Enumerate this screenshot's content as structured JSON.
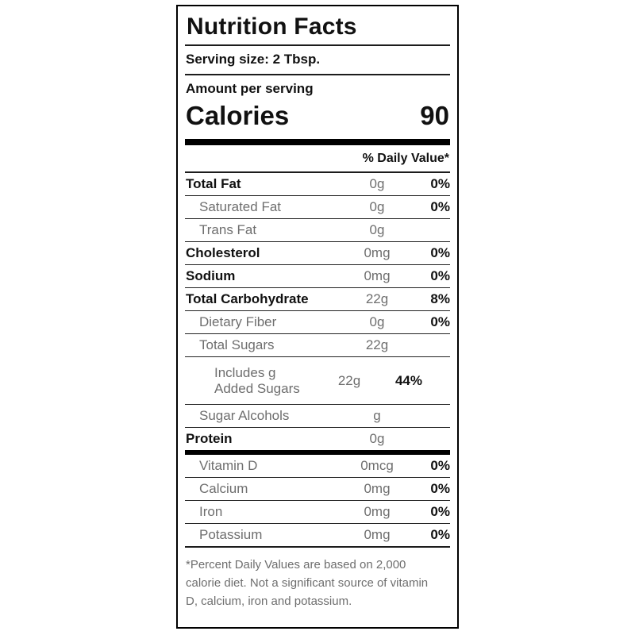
{
  "nutrition_label": {
    "title": "Nutrition Facts",
    "serving_size": "Serving size: 2 Tbsp.",
    "amount_per_serving": "Amount per serving",
    "calories": {
      "label": "Calories",
      "value": "90"
    },
    "daily_value_header": "% Daily Value*",
    "nutrients": [
      {
        "name": "Total Fat",
        "amount": "0g",
        "daily_value": "0%"
      },
      {
        "name": "Saturated Fat",
        "amount": "0g",
        "daily_value": "0%"
      },
      {
        "name": "Trans Fat",
        "amount": "0g",
        "daily_value": ""
      },
      {
        "name": "Cholesterol",
        "amount": "0mg",
        "daily_value": "0%"
      },
      {
        "name": "Sodium",
        "amount": "0mg",
        "daily_value": "0%"
      },
      {
        "name": "Total Carbohydrate",
        "amount": "22g",
        "daily_value": "8%"
      },
      {
        "name": "Dietary Fiber",
        "amount": "0g",
        "daily_value": "0%"
      },
      {
        "name": "Total Sugars",
        "amount": "22g",
        "daily_value": ""
      },
      {
        "name": "Includes g Added Sugars",
        "amount": "22g",
        "daily_value": "44%"
      },
      {
        "name": "Sugar Alcohols",
        "amount": "g",
        "daily_value": ""
      },
      {
        "name": "Protein",
        "amount": "0g",
        "daily_value": ""
      }
    ],
    "micronutrients": [
      {
        "name": "Vitamin D",
        "amount": "0mcg",
        "daily_value": "0%"
      },
      {
        "name": "Calcium",
        "amount": "0mg",
        "daily_value": "0%"
      },
      {
        "name": "Iron",
        "amount": "0mg",
        "daily_value": "0%"
      },
      {
        "name": "Potassium",
        "amount": "0mg",
        "daily_value": "0%"
      }
    ],
    "footnote": "*Percent Daily Values are based on 2,000 calorie diet. Not a significant source of vitamin D, calcium, iron and potassium."
  },
  "colors": {
    "background": "#ffffff",
    "text_primary": "#111111",
    "text_secondary": "#6e6e6e",
    "rule": "#1c1c1c"
  }
}
